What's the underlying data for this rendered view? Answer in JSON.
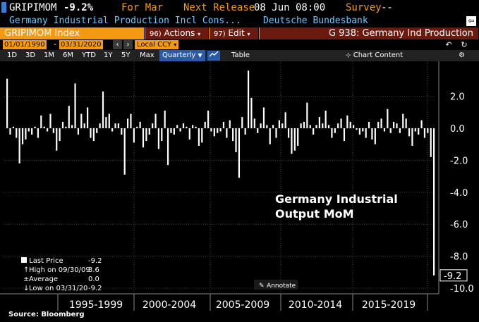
{
  "header": {
    "ticker": "GRIPIMOM",
    "value": "-9.2%",
    "period_label": "For Mar",
    "next_release_label": "Next Release",
    "next_release_value": "08 Jun 08:00",
    "survey_label": "Survey",
    "survey_value": "--"
  },
  "subheader": {
    "description": "Germany Industrial Production Incl Cons...",
    "source": "Deutsche Bundesbank",
    "back_icon": "export-icon"
  },
  "toolbar": {
    "security": "GRIPIMOM Index",
    "actions_num": "96)",
    "actions_label": "Actions",
    "edit_num": "97)",
    "edit_label": "Edit",
    "title": "G 938: Germany Ind Production"
  },
  "dates": {
    "start": "01/01/1990",
    "end": "03/31/2020",
    "currency": "Local CCY",
    "prev_icon": "chevron-left-icon",
    "next_icon": "chevron-right-icon",
    "undo_icon": "undo-icon",
    "refresh_icon": "refresh-icon"
  },
  "ranges": {
    "items": [
      "1D",
      "3D",
      "1M",
      "6M",
      "YTD",
      "1Y",
      "5Y",
      "Max"
    ],
    "frequency": "Quarterly",
    "table": "Table",
    "chart_content": "Chart Content",
    "settings_icon": "gear-icon"
  },
  "legend": {
    "last_price_label": "Last Price",
    "last_price_value": "-9.2",
    "high_label": "High on 09/30/09",
    "high_value": "3.6",
    "average_label": "Average",
    "average_value": "0.0",
    "low_label": "Low on 03/31/20",
    "low_value": "-9.2"
  },
  "annotate_label": "Annotate",
  "source_text": "Source: Bloomberg",
  "colors": {
    "orange": "#f39a12",
    "brown": "#6b1a0f",
    "blue_text": "#6ec8ff",
    "bars": "#ffffff",
    "background": "#000000"
  },
  "chart_data": {
    "type": "bar",
    "title": "",
    "annotation": [
      "Germany Industrial",
      "Output MoM"
    ],
    "x_labels": [
      "1995-1999",
      "2000-2004",
      "2005-2009",
      "2010-2014",
      "2015-2019"
    ],
    "y_ticks": [
      "2.0",
      "0.0",
      "-2.0",
      "-4.0",
      "-6.0",
      "-8.0",
      "-10.0"
    ],
    "ylim": [
      -10,
      4
    ],
    "last_value_label": "-9.2",
    "grid": true,
    "values": [
      3.1,
      -0.4,
      0.1,
      -0.6,
      -2.2,
      -1.0,
      -0.7,
      -0.2,
      -0.4,
      0.1,
      -0.6,
      0.8,
      0.1,
      -0.2,
      0.9,
      -0.3,
      -1.4,
      -0.8,
      0.4,
      0.1,
      1.4,
      0.2,
      2.8,
      -0.4,
      0.9,
      0.3,
      1.3,
      -0.6,
      -0.8,
      -0.3,
      0.3,
      2.3,
      0.7,
      0.9,
      -0.2,
      0.3,
      0.3,
      -0.4,
      -2.9,
      0.6,
      0.9,
      -0.9,
      0.1,
      0.4,
      -1.2,
      -0.8,
      -0.4,
      0.3,
      0.9,
      -1.3,
      -0.8,
      1.1,
      -2.3,
      -0.3,
      -0.4,
      0.2,
      -0.2,
      0.3,
      0.1,
      -0.7,
      0.2,
      0.1,
      -1.1,
      -0.9,
      0.4,
      1.1,
      -0.2,
      -0.5,
      -0.3,
      -0.2,
      0.4,
      -0.6,
      0.5,
      -0.8,
      -1.5,
      -3.1,
      0.7,
      -0.4,
      3.6,
      1.9,
      0.6,
      -0.3,
      0.3,
      1.3,
      0.2,
      -1.0,
      0.2,
      -0.6,
      0.5,
      0.3,
      1.0,
      -0.6,
      -1.6,
      -1.4,
      -1.1,
      0.3,
      0.4,
      1.6,
      0.2,
      -0.4,
      0.2,
      0.7,
      0.3,
      1.1,
      0.2,
      -0.6,
      -0.3,
      0.3,
      0.6,
      -0.8,
      0.8,
      0.4,
      0.2,
      -0.1,
      -0.4,
      -0.2,
      -0.6,
      0.4,
      -0.7,
      -1.0,
      0.4,
      0.6,
      -0.2,
      1.2,
      -0.3,
      0.4,
      0.3,
      -0.3,
      0.9,
      0.6,
      -0.5,
      -1.1,
      -0.2,
      -0.4,
      0.5,
      -0.6,
      -0.3,
      -1.8,
      -9.2
    ]
  }
}
